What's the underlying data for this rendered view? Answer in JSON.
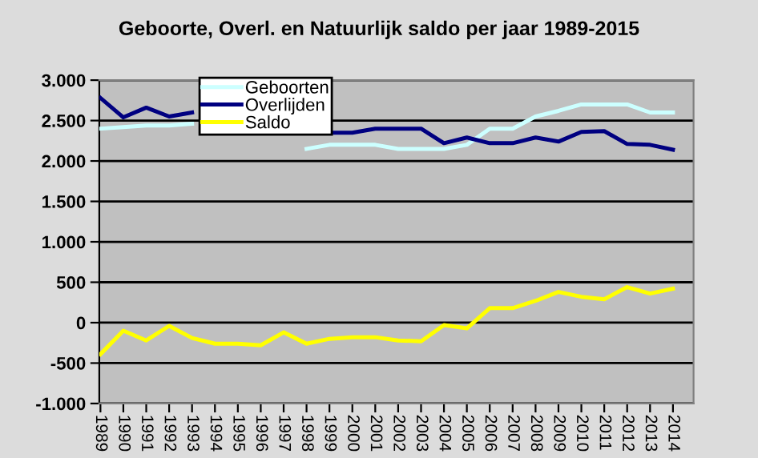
{
  "chart_data": {
    "type": "line",
    "title": "Geboorte, Overl. en Natuurlijk saldo per jaar 1989-2015",
    "categories": [
      "1989",
      "1990",
      "1991",
      "1992",
      "1993",
      "1994",
      "1995",
      "1996",
      "1997",
      "1998",
      "1999",
      "2000",
      "2001",
      "2002",
      "2003",
      "2004",
      "2005",
      "2006",
      "2007",
      "2008",
      "2009",
      "2010",
      "2011",
      "2012",
      "2013",
      "2014"
    ],
    "series": [
      {
        "name": "Geboorten",
        "color": "#ccffff",
        "values": [
          2400,
          2420,
          2440,
          2440,
          2460,
          null,
          null,
          null,
          null,
          2150,
          2200,
          2200,
          2200,
          2150,
          2150,
          2150,
          2200,
          2400,
          2400,
          2550,
          2620,
          2700,
          2700,
          2700,
          2600,
          2600
        ]
      },
      {
        "name": "Overlijden",
        "color": "#000080",
        "values": [
          2780,
          2540,
          2660,
          2550,
          2600,
          null,
          null,
          null,
          null,
          null,
          2350,
          2350,
          2400,
          2400,
          2400,
          2220,
          2290,
          2220,
          2220,
          2290,
          2240,
          2360,
          2370,
          2210,
          2200,
          2140
        ]
      },
      {
        "name": "Saldo",
        "color": "#ffff00",
        "values": [
          -390,
          -100,
          -220,
          -40,
          -190,
          -260,
          -260,
          -280,
          -120,
          -260,
          -200,
          -180,
          -180,
          -220,
          -230,
          -30,
          -70,
          180,
          180,
          270,
          380,
          320,
          290,
          440,
          360,
          420
        ]
      }
    ],
    "ylim": [
      -1000,
      3000
    ],
    "yticks": [
      {
        "value": -1000,
        "label": "-1.000"
      },
      {
        "value": -500,
        "label": "-500"
      },
      {
        "value": 0,
        "label": "0"
      },
      {
        "value": 500,
        "label": "500"
      },
      {
        "value": 1000,
        "label": "1.000"
      },
      {
        "value": 1500,
        "label": "1.500"
      },
      {
        "value": 2000,
        "label": "2.000"
      },
      {
        "value": 2500,
        "label": "2.500"
      },
      {
        "value": 3000,
        "label": "3.000"
      }
    ],
    "grid": "y",
    "legend": "top",
    "marker": "none",
    "line_style": "solid"
  }
}
